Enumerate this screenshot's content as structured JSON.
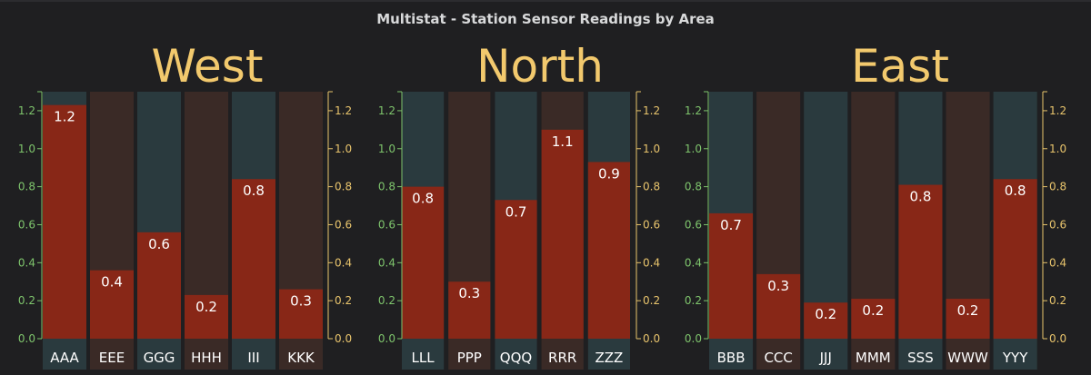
{
  "panel": {
    "title": "Multistat - Station Sensor Readings by Area"
  },
  "colors": {
    "bar": "#882717",
    "bg_dark": "#3a2a26",
    "bg_teal": "#2a3a3e",
    "left_axis": "#7ec46c",
    "right_axis": "#e8c46c",
    "group_title": "#f2c96d",
    "label": "#ffffff"
  },
  "chart_data": [
    {
      "type": "bar",
      "title": "West",
      "categories": [
        "AAA",
        "EEE",
        "GGG",
        "HHH",
        "III",
        "KKK"
      ],
      "values": [
        1.23,
        0.36,
        0.56,
        0.23,
        0.84,
        0.26
      ],
      "labels": [
        "1.2",
        "0.4",
        "0.6",
        "0.2",
        "0.8",
        "0.3"
      ],
      "ylim": [
        0,
        1.3
      ],
      "yticks": [
        "0.0",
        "0.2",
        "0.4",
        "0.6",
        "0.8",
        "1.0",
        "1.2"
      ]
    },
    {
      "type": "bar",
      "title": "North",
      "categories": [
        "LLL",
        "PPP",
        "QQQ",
        "RRR",
        "ZZZ"
      ],
      "values": [
        0.8,
        0.3,
        0.73,
        1.1,
        0.93
      ],
      "labels": [
        "0.8",
        "0.3",
        "0.7",
        "1.1",
        "0.9"
      ],
      "ylim": [
        0,
        1.3
      ],
      "yticks": [
        "0.0",
        "0.2",
        "0.4",
        "0.6",
        "0.8",
        "1.0",
        "1.2"
      ]
    },
    {
      "type": "bar",
      "title": "East",
      "categories": [
        "BBB",
        "CCC",
        "JJJ",
        "MMM",
        "SSS",
        "WWW",
        "YYY"
      ],
      "values": [
        0.66,
        0.34,
        0.19,
        0.21,
        0.81,
        0.21,
        0.84
      ],
      "labels": [
        "0.7",
        "0.3",
        "0.2",
        "0.2",
        "0.8",
        "0.2",
        "0.8"
      ],
      "ylim": [
        0,
        1.3
      ],
      "yticks": [
        "0.0",
        "0.2",
        "0.4",
        "0.6",
        "0.8",
        "1.0",
        "1.2"
      ]
    }
  ]
}
